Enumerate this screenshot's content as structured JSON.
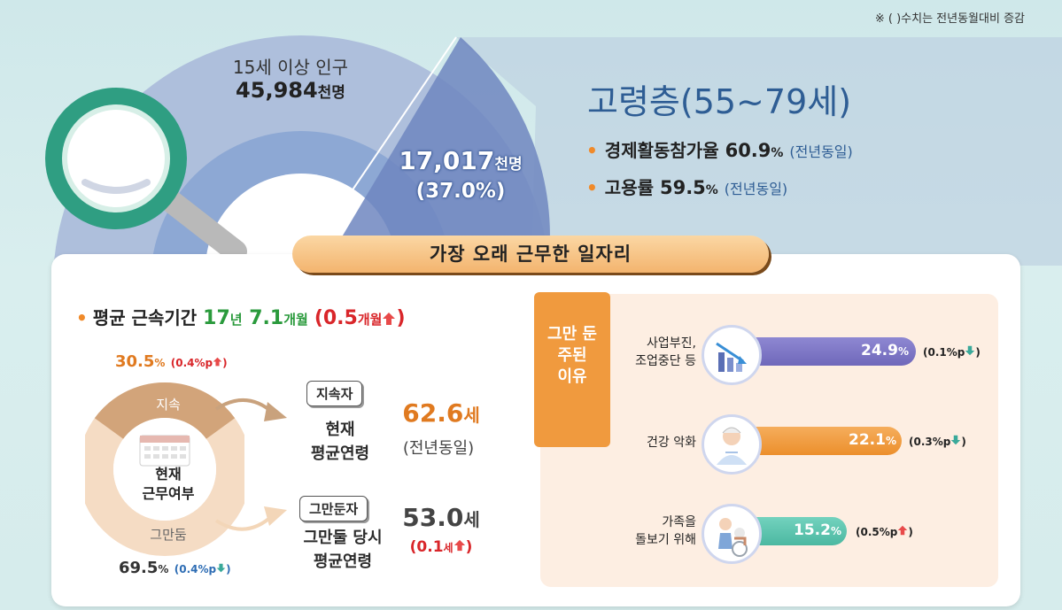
{
  "note": "※ ( )수치는 전년동월대비 증감",
  "population": {
    "label": "15세 이상 인구",
    "value": "45,984",
    "unit": "천명"
  },
  "senior": {
    "count": "17,017",
    "count_unit": "천명",
    "share": "(37.0%)",
    "title": "고령층(55~79세)",
    "participation_label": "경제활동참가율",
    "participation_value": "60.9",
    "participation_unit": "%",
    "participation_change": "(전년동일)",
    "employment_label": "고용률",
    "employment_value": "59.5",
    "employment_unit": "%",
    "employment_change": "(전년동일)"
  },
  "banner": "가장 오래 근무한 일자리",
  "tenure": {
    "label": "평균 근속기간",
    "years": "17",
    "years_unit": "년",
    "months": "7.1",
    "months_unit": "개월",
    "change_open": "(0.5",
    "change_unit": "개월",
    "change_close": ")"
  },
  "status": {
    "continuing_pct": "30.5",
    "continuing_unit": "%",
    "continuing_change": "(0.4%p",
    "continuing_change_close": ")",
    "continuing_label": "지속",
    "quit_label": "그만둠",
    "quit_pct": "69.5",
    "quit_unit": "%",
    "quit_change": "(0.4%p",
    "quit_change_close": ")",
    "center_line1": "현재",
    "center_line2": "근무여부"
  },
  "continuing_worker": {
    "tag": "지속자",
    "label_line1": "현재",
    "label_line2": "평균연령",
    "age": "62.6",
    "age_unit": "세",
    "change": "(전년동일)"
  },
  "quitter": {
    "tag": "그만둔자",
    "label_line1": "그만둘 당시",
    "label_line2": "평균연령",
    "age": "53.0",
    "age_unit": "세",
    "change_open": "(0.1",
    "change_unit": "세",
    "change_close": ")"
  },
  "reasons": {
    "tab_line1": "그만 둔",
    "tab_line2": "주된",
    "tab_line3": "이유",
    "items": [
      {
        "label_line1": "사업부진,",
        "label_line2": "조업중단 등",
        "value": "24.9",
        "unit": "%",
        "change": "(0.1%p",
        "change_close": ")",
        "direction": "down",
        "icon": "bar-chart-down-icon",
        "color": "#7b74c4"
      },
      {
        "label_line1": "건강 악화",
        "label_line2": "",
        "value": "22.1",
        "unit": "%",
        "change": "(0.3%p",
        "change_close": ")",
        "direction": "down",
        "icon": "patient-icon",
        "color": "#ef9a3e"
      },
      {
        "label_line1": "가족을",
        "label_line2": "돌보기 위해",
        "value": "15.2",
        "unit": "%",
        "change": "(0.5%p",
        "change_close": ")",
        "direction": "up",
        "icon": "family-care-icon",
        "color": "#5cc3ae"
      }
    ]
  },
  "colors": {
    "orange": "#f08a2a",
    "green": "#2a9a3c",
    "red": "#d9262a",
    "blue_title": "#2e5d94",
    "down_teal": "#3aa99a"
  }
}
